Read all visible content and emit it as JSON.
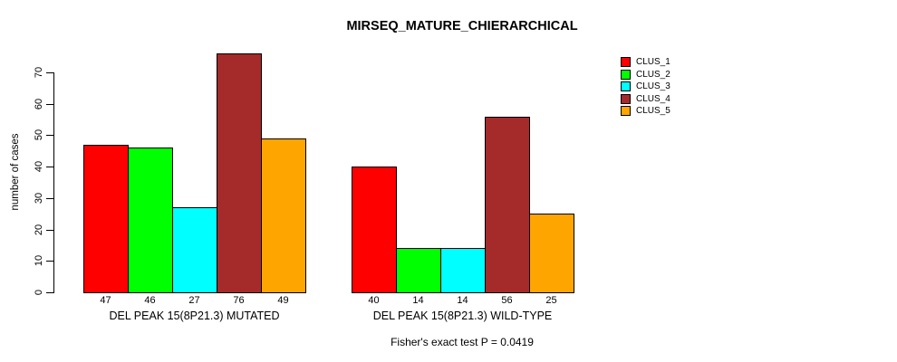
{
  "chart_data": {
    "type": "bar",
    "title": "MIRSEQ_MATURE_CHIERARCHICAL",
    "ylabel": "number of cases",
    "xlabel": "",
    "ylim": [
      0,
      70
    ],
    "yticks": [
      0,
      10,
      20,
      30,
      40,
      50,
      60,
      70
    ],
    "grid": false,
    "legend_position": "top-right",
    "series_names": [
      "CLUS_1",
      "CLUS_2",
      "CLUS_3",
      "CLUS_4",
      "CLUS_5"
    ],
    "series_colors": [
      "#FF0000",
      "#00FF00",
      "#00FFFF",
      "#A52A2A",
      "#FFA500"
    ],
    "bar_border_color": "#000000",
    "groups": [
      {
        "label": "DEL PEAK 15(8P21.3) MUTATED",
        "values": [
          47,
          46,
          27,
          76,
          49
        ]
      },
      {
        "label": "DEL PEAK 15(8P21.3) WILD-TYPE",
        "values": [
          40,
          14,
          14,
          56,
          25
        ]
      }
    ],
    "value_labels_shown": true,
    "annotation": "Fisher's exact test P = 0.0419"
  }
}
